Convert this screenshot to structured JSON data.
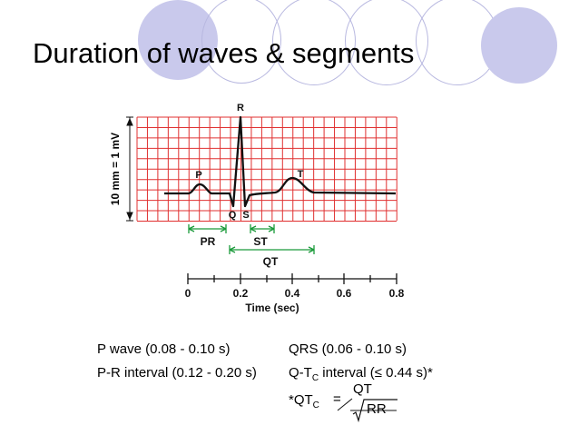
{
  "slide": {
    "title": "Duration of waves & segments"
  },
  "ecg": {
    "y_axis_label": "10 mm = 1 mV",
    "wave_labels": {
      "P": "P",
      "Q": "Q",
      "R": "R",
      "S": "S",
      "T": "T"
    },
    "intervals": {
      "PR": "PR",
      "ST": "ST",
      "QT": "QT"
    },
    "time_axis": {
      "label": "Time (sec)",
      "ticks": [
        "0",
        "0.2",
        "0.4",
        "0.6",
        "0.8"
      ]
    }
  },
  "notes": {
    "p_wave": "P wave (0.08 - 0.10 s)",
    "qrs": "QRS (0.06 - 0.10 s)",
    "pr_interval": "P-R interval (0.12 - 0.20 s)",
    "qtc_prefix": "Q-T",
    "qtc_sub": "C",
    "qtc_suffix": " interval (≤ 0.44 s)*",
    "formula_lhs": "*QT",
    "formula_lhs_sub": "C",
    "formula_eq": "=",
    "formula_num": "QT",
    "formula_den": "RR"
  },
  "colors": {
    "grid": "#e03030",
    "interval_arrow": "#1a9a3a",
    "deco_fill": "#c9c9ec",
    "deco_outline": "#b8b8e0"
  }
}
